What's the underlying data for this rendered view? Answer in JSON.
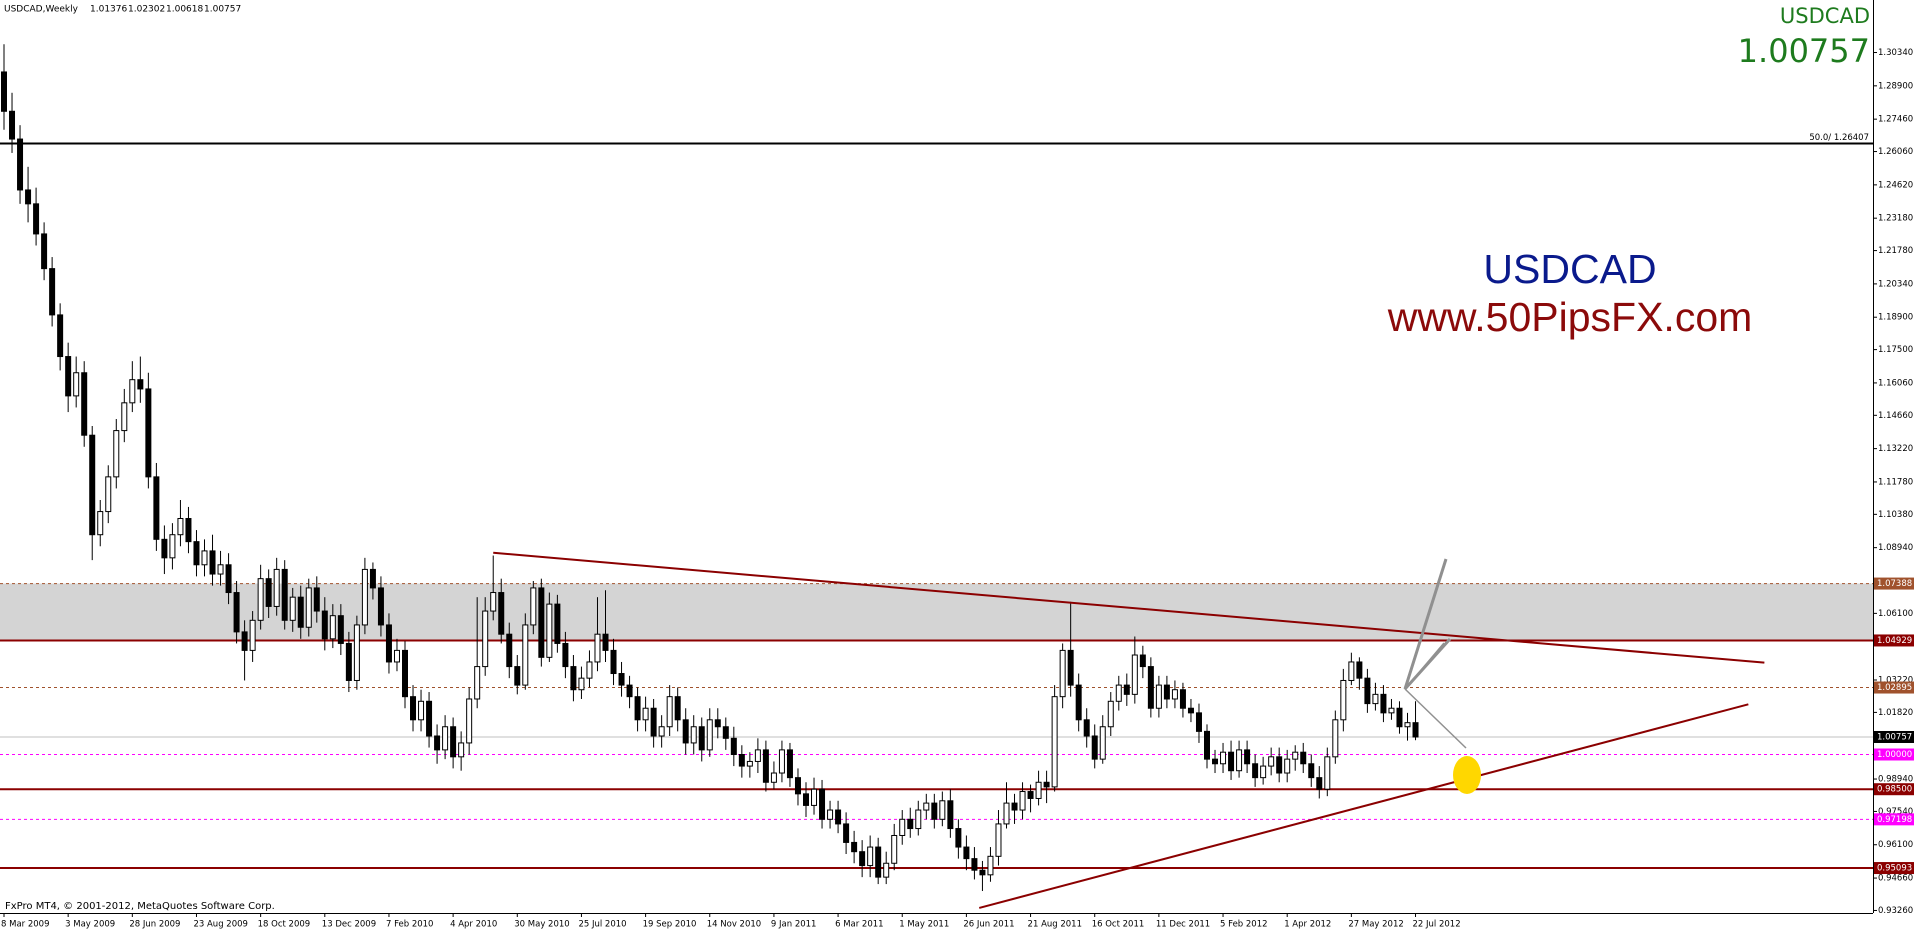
{
  "chart_data": {
    "type": "candlestick",
    "header": "USDCAD,Weekly",
    "symbol": "USDCAD",
    "watermark": [
      "USDCAD",
      "www.50PipsFX.com"
    ],
    "footer": "FxPro MT4, © 2001-2012, MetaQuotes Software Corp.",
    "up_color": "#ffffff",
    "down_color": "#000000",
    "categories": [
      "8 Mar 2009",
      null,
      null,
      null,
      null,
      null,
      null,
      null,
      "3 May 2009",
      null,
      null,
      null,
      null,
      null,
      null,
      null,
      "28 Jun 2009",
      null,
      null,
      null,
      null,
      null,
      null,
      null,
      "23 Aug 2009",
      null,
      null,
      null,
      null,
      null,
      null,
      null,
      "18 Oct 2009",
      null,
      null,
      null,
      null,
      null,
      null,
      null,
      "13 Dec 2009",
      null,
      null,
      null,
      null,
      null,
      null,
      null,
      "7 Feb 2010",
      null,
      null,
      null,
      null,
      null,
      null,
      null,
      "4 Apr 2010",
      null,
      null,
      null,
      null,
      null,
      null,
      null,
      "30 May 2010",
      null,
      null,
      null,
      null,
      null,
      null,
      null,
      "25 Jul 2010",
      null,
      null,
      null,
      null,
      null,
      null,
      null,
      "19 Sep 2010",
      null,
      null,
      null,
      null,
      null,
      null,
      null,
      "14 Nov 2010",
      null,
      null,
      null,
      null,
      null,
      null,
      null,
      "9 Jan 2011",
      null,
      null,
      null,
      null,
      null,
      null,
      null,
      "6 Mar 2011",
      null,
      null,
      null,
      null,
      null,
      null,
      null,
      "1 May 2011",
      null,
      null,
      null,
      null,
      null,
      null,
      null,
      "26 Jun 2011",
      null,
      null,
      null,
      null,
      null,
      null,
      null,
      "21 Aug 2011",
      null,
      null,
      null,
      null,
      null,
      null,
      null,
      "16 Oct 2011",
      null,
      null,
      null,
      null,
      null,
      null,
      null,
      "11 Dec 2011",
      null,
      null,
      null,
      null,
      null,
      null,
      null,
      "5 Feb 2012",
      null,
      null,
      null,
      null,
      null,
      null,
      null,
      "1 Apr 2012",
      null,
      null,
      null,
      null,
      null,
      null,
      null,
      "27 May 2012",
      null,
      null,
      null,
      null,
      null,
      null,
      null,
      "22 Jul 2012"
    ],
    "open": [
      1.295,
      1.278,
      1.266,
      1.244,
      1.238,
      1.225,
      1.21,
      1.19,
      1.172,
      1.155,
      1.165,
      1.138,
      1.095,
      1.105,
      1.12,
      1.14,
      1.152,
      1.162,
      1.158,
      1.12,
      1.093,
      1.085,
      1.095,
      1.102,
      1.092,
      1.082,
      1.088,
      1.078,
      1.082,
      1.07,
      1.053,
      1.045,
      1.058,
      1.076,
      1.064,
      1.08,
      1.058,
      1.068,
      1.055,
      1.072,
      1.062,
      1.05,
      1.06,
      1.048,
      1.032,
      1.056,
      1.08,
      1.072,
      1.056,
      1.04,
      1.045,
      1.025,
      1.015,
      1.023,
      1.008,
      1.002,
      1.012,
      0.999,
      1.005,
      1.024,
      1.038,
      1.062,
      1.07,
      1.052,
      1.038,
      1.03,
      1.056,
      1.072,
      1.042,
      1.065,
      1.048,
      1.038,
      1.028,
      1.033,
      1.04,
      1.052,
      1.045,
      1.035,
      1.03,
      1.025,
      1.015,
      1.02,
      1.008,
      1.012,
      1.025,
      1.015,
      1.005,
      1.012,
      1.002,
      1.015,
      1.012,
      1.007,
      1.0,
      0.995,
      0.997,
      1.002,
      0.988,
      0.992,
      1.002,
      0.99,
      0.983,
      0.978,
      0.985,
      0.972,
      0.976,
      0.97,
      0.962,
      0.958,
      0.952,
      0.96,
      0.947,
      0.953,
      0.965,
      0.972,
      0.968,
      0.976,
      0.979,
      0.972,
      0.98,
      0.968,
      0.96,
      0.955,
      0.95,
      0.948,
      0.956,
      0.97,
      0.979,
      0.976,
      0.984,
      0.981,
      0.988,
      0.986,
      1.025,
      1.045,
      1.03,
      1.015,
      1.008,
      0.998,
      1.012,
      1.023,
      1.03,
      1.026,
      1.043,
      1.038,
      1.02,
      1.03,
      1.024,
      1.028,
      1.02,
      1.018,
      1.01,
      0.998,
      0.996,
      1.001,
      0.993,
      1.002,
      0.996,
      0.99,
      0.995,
      0.999,
      0.992,
      0.998,
      1.001,
      0.996,
      0.99,
      0.985,
      0.999,
      1.015,
      1.032,
      1.04,
      1.033,
      1.022,
      1.026,
      1.018,
      1.02,
      1.012,
      1.01376
    ],
    "high": [
      1.307,
      1.286,
      1.272,
      1.254,
      1.245,
      1.23,
      1.215,
      1.195,
      1.178,
      1.172,
      1.17,
      1.142,
      1.11,
      1.125,
      1.145,
      1.158,
      1.17,
      1.172,
      1.165,
      1.126,
      1.099,
      1.1,
      1.11,
      1.107,
      1.097,
      1.093,
      1.095,
      1.088,
      1.087,
      1.075,
      1.058,
      1.062,
      1.082,
      1.08,
      1.085,
      1.084,
      1.072,
      1.073,
      1.076,
      1.077,
      1.068,
      1.065,
      1.065,
      1.053,
      1.06,
      1.085,
      1.083,
      1.077,
      1.061,
      1.05,
      1.049,
      1.03,
      1.028,
      1.027,
      1.013,
      1.017,
      1.016,
      1.01,
      1.029,
      1.068,
      1.068,
      1.086,
      1.076,
      1.057,
      1.043,
      1.061,
      1.075,
      1.076,
      1.07,
      1.069,
      1.053,
      1.043,
      1.038,
      1.045,
      1.068,
      1.071,
      1.05,
      1.04,
      1.034,
      1.029,
      1.025,
      1.024,
      1.017,
      1.03,
      1.029,
      1.02,
      1.017,
      1.016,
      1.02,
      1.02,
      1.016,
      1.012,
      1.004,
      1.001,
      1.007,
      1.006,
      0.997,
      1.006,
      1.005,
      0.994,
      0.988,
      0.99,
      0.989,
      0.98,
      0.98,
      0.975,
      0.967,
      0.963,
      0.965,
      0.964,
      0.958,
      0.97,
      0.976,
      0.977,
      0.98,
      0.983,
      0.983,
      0.984,
      0.985,
      0.972,
      0.965,
      0.96,
      0.954,
      0.96,
      0.976,
      0.988,
      0.983,
      0.988,
      0.987,
      0.993,
      0.993,
      1.03,
      1.048,
      1.066,
      1.035,
      1.02,
      1.013,
      1.017,
      1.027,
      1.034,
      1.035,
      1.051,
      1.047,
      1.042,
      1.034,
      1.034,
      1.032,
      1.031,
      1.024,
      1.022,
      1.013,
      1.002,
      1.005,
      1.006,
      1.006,
      1.006,
      1.0,
      0.999,
      1.003,
      1.003,
      1.002,
      1.004,
      1.005,
      1.0,
      0.995,
      1.003,
      1.019,
      1.037,
      1.044,
      1.042,
      1.037,
      1.031,
      1.03,
      1.024,
      1.023,
      1.018,
      1.02302
    ],
    "low": [
      1.27,
      1.26,
      1.238,
      1.23,
      1.22,
      1.205,
      1.185,
      1.166,
      1.148,
      1.15,
      1.133,
      1.084,
      1.09,
      1.1,
      1.115,
      1.135,
      1.148,
      1.152,
      1.115,
      1.088,
      1.078,
      1.08,
      1.09,
      1.087,
      1.077,
      1.077,
      1.073,
      1.073,
      1.065,
      1.048,
      1.032,
      1.04,
      1.054,
      1.059,
      1.06,
      1.054,
      1.053,
      1.05,
      1.051,
      1.057,
      1.045,
      1.046,
      1.043,
      1.027,
      1.028,
      1.052,
      1.067,
      1.051,
      1.035,
      1.036,
      1.02,
      1.01,
      1.01,
      1.003,
      0.996,
      0.998,
      0.994,
      0.993,
      1.0,
      1.02,
      1.034,
      1.058,
      1.048,
      1.033,
      1.026,
      1.028,
      1.052,
      1.038,
      1.04,
      1.044,
      1.033,
      1.023,
      1.024,
      1.029,
      1.036,
      1.04,
      1.03,
      1.025,
      1.02,
      1.01,
      1.01,
      1.003,
      1.003,
      1.008,
      1.01,
      1.0,
      1.0,
      0.997,
      0.999,
      1.007,
      1.002,
      0.995,
      0.99,
      0.99,
      0.992,
      0.984,
      0.985,
      0.988,
      0.986,
      0.978,
      0.973,
      0.974,
      0.968,
      0.968,
      0.966,
      0.957,
      0.953,
      0.947,
      0.947,
      0.944,
      0.944,
      0.95,
      0.961,
      0.964,
      0.965,
      0.972,
      0.968,
      0.969,
      0.964,
      0.955,
      0.95,
      0.946,
      0.941,
      0.945,
      0.952,
      0.968,
      0.97,
      0.972,
      0.975,
      0.978,
      0.979,
      0.984,
      1.02,
      1.025,
      1.01,
      1.003,
      0.994,
      0.996,
      1.008,
      1.019,
      1.021,
      1.022,
      1.033,
      1.016,
      1.016,
      1.02,
      1.02,
      1.016,
      1.014,
      1.005,
      0.994,
      0.992,
      0.992,
      0.989,
      0.99,
      0.992,
      0.986,
      0.987,
      0.991,
      0.988,
      0.988,
      0.993,
      0.992,
      0.986,
      0.981,
      0.982,
      0.996,
      1.01,
      1.03,
      1.028,
      1.018,
      1.019,
      1.014,
      1.015,
      1.009,
      1.006,
      1.00618
    ],
    "close": [
      1.278,
      1.266,
      1.244,
      1.238,
      1.225,
      1.21,
      1.19,
      1.172,
      1.155,
      1.165,
      1.138,
      1.095,
      1.105,
      1.12,
      1.14,
      1.152,
      1.162,
      1.158,
      1.12,
      1.093,
      1.085,
      1.095,
      1.102,
      1.092,
      1.082,
      1.088,
      1.078,
      1.082,
      1.07,
      1.053,
      1.045,
      1.058,
      1.076,
      1.064,
      1.08,
      1.058,
      1.068,
      1.055,
      1.072,
      1.062,
      1.05,
      1.06,
      1.048,
      1.032,
      1.056,
      1.08,
      1.072,
      1.056,
      1.04,
      1.045,
      1.025,
      1.015,
      1.023,
      1.008,
      1.002,
      1.012,
      0.999,
      1.005,
      1.024,
      1.038,
      1.062,
      1.07,
      1.052,
      1.038,
      1.03,
      1.056,
      1.072,
      1.042,
      1.065,
      1.048,
      1.038,
      1.028,
      1.033,
      1.04,
      1.052,
      1.045,
      1.035,
      1.03,
      1.025,
      1.015,
      1.02,
      1.008,
      1.012,
      1.025,
      1.015,
      1.005,
      1.012,
      1.002,
      1.015,
      1.012,
      1.007,
      1.0,
      0.995,
      0.997,
      1.002,
      0.988,
      0.992,
      1.002,
      0.99,
      0.983,
      0.978,
      0.985,
      0.972,
      0.976,
      0.97,
      0.962,
      0.958,
      0.952,
      0.96,
      0.947,
      0.953,
      0.965,
      0.972,
      0.968,
      0.976,
      0.979,
      0.972,
      0.98,
      0.968,
      0.96,
      0.955,
      0.95,
      0.948,
      0.956,
      0.97,
      0.979,
      0.976,
      0.984,
      0.981,
      0.988,
      0.986,
      1.025,
      1.045,
      1.03,
      1.015,
      1.008,
      0.998,
      1.012,
      1.023,
      1.03,
      1.026,
      1.043,
      1.038,
      1.02,
      1.03,
      1.024,
      1.028,
      1.02,
      1.018,
      1.01,
      0.998,
      0.996,
      1.001,
      0.993,
      1.002,
      0.996,
      0.99,
      0.995,
      0.999,
      0.992,
      0.998,
      1.001,
      0.996,
      0.99,
      0.985,
      0.999,
      1.015,
      1.032,
      1.04,
      1.033,
      1.022,
      1.026,
      1.018,
      1.02,
      1.012,
      1.01376,
      1.00757
    ],
    "ylim": [
      0.9315,
      1.3261
    ],
    "yticks": [
      {
        "value": 1.3034,
        "label": "1.30340"
      },
      {
        "value": 1.289,
        "label": "1.28900"
      },
      {
        "value": 1.2746,
        "label": "1.27460"
      },
      {
        "value": 1.2606,
        "label": "1.26060"
      },
      {
        "value": 1.2462,
        "label": "1.24620"
      },
      {
        "value": 1.2318,
        "label": "1.23180"
      },
      {
        "value": 1.2178,
        "label": "1.21780"
      },
      {
        "value": 1.2034,
        "label": "1.20340"
      },
      {
        "value": 1.189,
        "label": "1.18900"
      },
      {
        "value": 1.175,
        "label": "1.17500"
      },
      {
        "value": 1.1606,
        "label": "1.16060"
      },
      {
        "value": 1.1466,
        "label": "1.14660"
      },
      {
        "value": 1.1322,
        "label": "1.13220"
      },
      {
        "value": 1.1178,
        "label": "1.11780"
      },
      {
        "value": 1.1038,
        "label": "1.10380"
      },
      {
        "value": 1.0894,
        "label": "1.08940"
      },
      {
        "value": 1.061,
        "label": "1.06100"
      },
      {
        "value": 1.0322,
        "label": "1.03220"
      },
      {
        "value": 1.0182,
        "label": "1.01820"
      },
      {
        "value": 0.9894,
        "label": "0.98940"
      },
      {
        "value": 0.9754,
        "label": "0.97540"
      },
      {
        "value": 0.961,
        "label": "0.96100"
      },
      {
        "value": 0.9466,
        "label": "0.94660"
      },
      {
        "value": 0.9326,
        "label": "0.93260"
      }
    ],
    "zone": {
      "ylim": [
        1.04929,
        1.07388
      ],
      "color": "#d4d4d4"
    },
    "levels": [
      {
        "value": 1.26407,
        "label": "50.0/ 1.26407",
        "color": "#000000",
        "style": "solid",
        "width": 2,
        "placement": "inline"
      },
      {
        "value": 1.07388,
        "color": "#a0522d",
        "style": "dotted",
        "width": 1,
        "placement": "axis"
      },
      {
        "value": 1.04929,
        "color": "#8b0000",
        "style": "solid",
        "width": 2,
        "placement": "axis"
      },
      {
        "value": 1.02895,
        "color": "#a0522d",
        "style": "dotted",
        "width": 1,
        "placement": "axis"
      },
      {
        "value": 1,
        "label": "1.00000",
        "color": "#ff00ff",
        "style": "dotted",
        "width": 1,
        "placement": "axis"
      },
      {
        "value": 0.985,
        "label": "0.98500",
        "color": "#8b0000",
        "style": "solid",
        "width": 2,
        "placement": "axis"
      },
      {
        "value": 0.97198,
        "color": "#ff00ff",
        "style": "dotted",
        "width": 1,
        "placement": "axis"
      },
      {
        "value": 0.95093,
        "color": "#8b0000",
        "style": "solid",
        "width": 2,
        "placement": "axis"
      }
    ],
    "trendlines": [
      {
        "color": "#8b0000",
        "x": [
          61,
          219.5
        ],
        "y": [
          1.0872,
          1.0397
        ]
      },
      {
        "color": "#8b0000",
        "x": [
          121.6,
          217.5
        ],
        "y": [
          0.9337,
          1.0217
        ]
      }
    ]
  }
}
